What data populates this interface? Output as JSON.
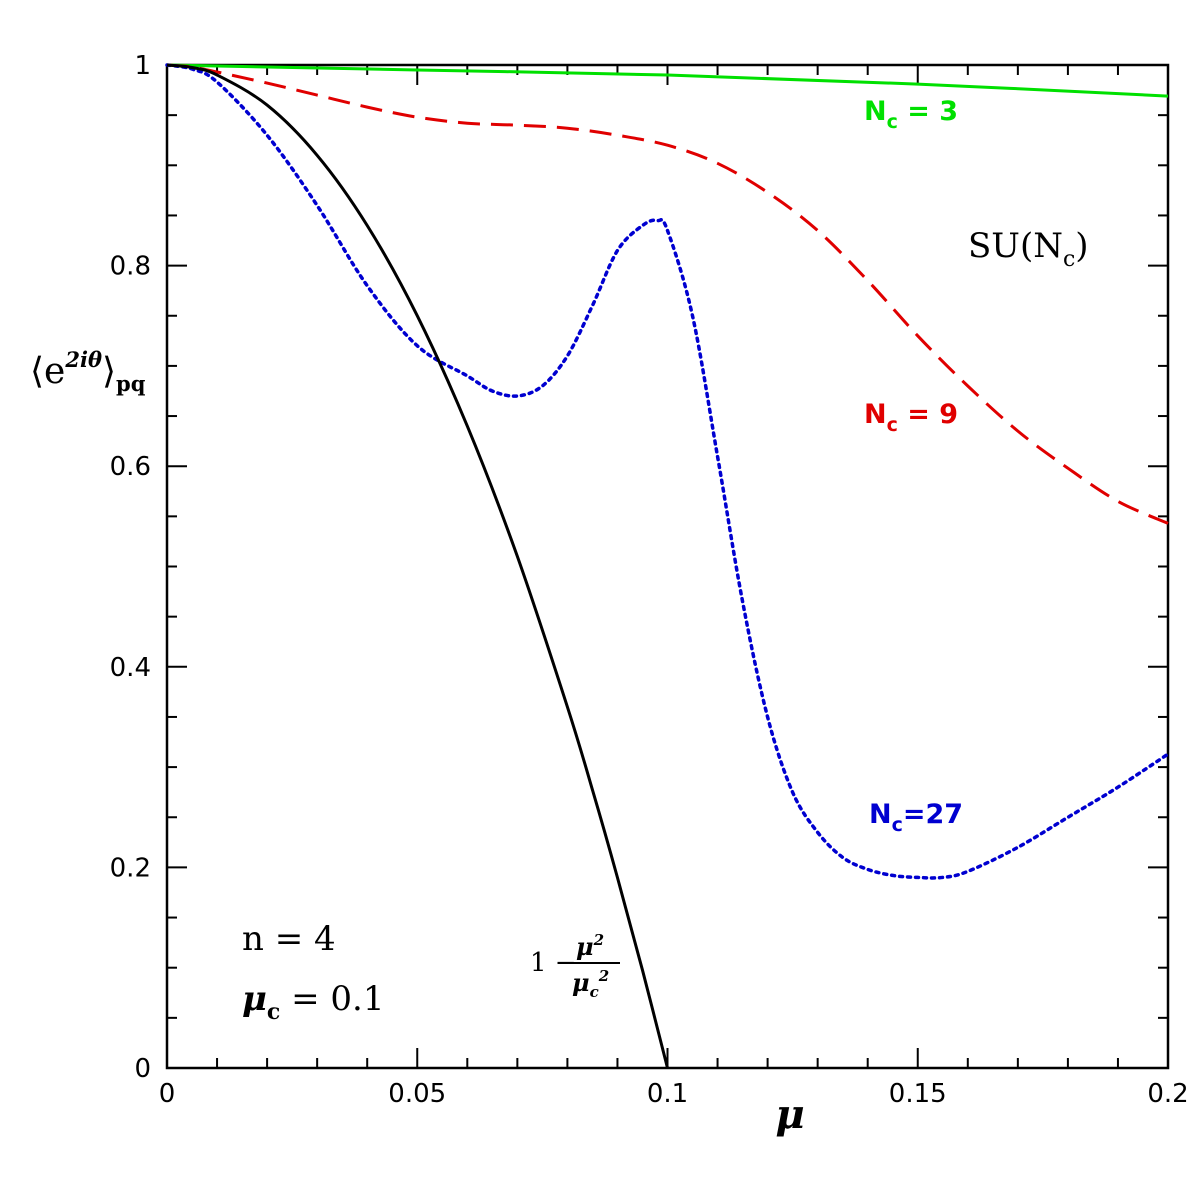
{
  "chart_data": {
    "type": "line",
    "title": "",
    "xlabel": "μ",
    "ylabel": {
      "base": "⟨e",
      "sup": "2iθ",
      "close": "⟩",
      "sub": "pq"
    },
    "xlim": [
      0,
      0.2
    ],
    "ylim": [
      0,
      1
    ],
    "x_ticks": [
      0,
      0.05,
      0.1,
      0.15,
      0.2
    ],
    "x_tick_labels": [
      "0",
      "0.05",
      "0.1",
      "0.15",
      "0.2"
    ],
    "y_ticks": [
      0,
      0.2,
      0.4,
      0.6,
      0.8,
      1
    ],
    "y_tick_labels": [
      "0",
      "0.2",
      "0.4",
      "0.6",
      "0.8",
      "1"
    ],
    "grid": false,
    "series": [
      {
        "name": "N_c = 3",
        "label": {
          "main": "N",
          "sub": "c",
          "rest": " = 3"
        },
        "color": "#00e000",
        "style": "solid",
        "x": [
          0,
          0.05,
          0.1,
          0.15,
          0.2
        ],
        "y": [
          1.0,
          0.995,
          0.99,
          0.981,
          0.969
        ]
      },
      {
        "name": "N_c = 9",
        "label": {
          "main": "N",
          "sub": "c",
          "rest": " = 9"
        },
        "color": "#e00000",
        "style": "dashed",
        "x": [
          0,
          0.005,
          0.01,
          0.02,
          0.03,
          0.04,
          0.05,
          0.06,
          0.07,
          0.08,
          0.09,
          0.1,
          0.11,
          0.12,
          0.13,
          0.14,
          0.15,
          0.16,
          0.17,
          0.18,
          0.19,
          0.2
        ],
        "y": [
          1.0,
          0.998,
          0.993,
          0.982,
          0.97,
          0.958,
          0.948,
          0.942,
          0.94,
          0.937,
          0.93,
          0.92,
          0.902,
          0.873,
          0.835,
          0.785,
          0.73,
          0.68,
          0.635,
          0.598,
          0.565,
          0.543
        ]
      },
      {
        "name": "N_c=27",
        "label": {
          "main": "N",
          "sub": "c",
          "rest": "=27"
        },
        "color": "#0000d0",
        "style": "dotted",
        "x": [
          0,
          0.005,
          0.01,
          0.02,
          0.03,
          0.04,
          0.05,
          0.06,
          0.065,
          0.07,
          0.075,
          0.08,
          0.085,
          0.09,
          0.095,
          0.098,
          0.1,
          0.105,
          0.11,
          0.115,
          0.12,
          0.125,
          0.13,
          0.135,
          0.14,
          0.145,
          0.15,
          0.155,
          0.16,
          0.17,
          0.18,
          0.19,
          0.2
        ],
        "y": [
          1.0,
          0.996,
          0.983,
          0.93,
          0.86,
          0.78,
          0.72,
          0.69,
          0.675,
          0.67,
          0.68,
          0.71,
          0.76,
          0.815,
          0.84,
          0.845,
          0.835,
          0.75,
          0.61,
          0.465,
          0.35,
          0.275,
          0.235,
          0.21,
          0.198,
          0.192,
          0.19,
          0.19,
          0.196,
          0.22,
          0.25,
          0.28,
          0.313
        ]
      },
      {
        "name": "1 − μ²/μ_c²",
        "label": {
          "one": "1 −",
          "num": "μ",
          "num_sup": "2",
          "den": "μ",
          "den_sub": "c",
          "den_sup": "2"
        },
        "color": "#000000",
        "style": "solid",
        "x": [
          0,
          0.005,
          0.01,
          0.02,
          0.03,
          0.04,
          0.05,
          0.06,
          0.07,
          0.08,
          0.085,
          0.09,
          0.095,
          0.1
        ],
        "y": [
          1.0,
          0.9975,
          0.99,
          0.96,
          0.91,
          0.84,
          0.75,
          0.64,
          0.51,
          0.36,
          0.2775,
          0.19,
          0.0975,
          0.0
        ]
      }
    ],
    "annotations": {
      "group": {
        "main": "SU(N",
        "sub": "c",
        "close": ")"
      },
      "n": {
        "var": "n",
        "rest": " = 4"
      },
      "mu_c": {
        "var": "μ",
        "sub": "c",
        "rest": " = 0.1"
      }
    }
  }
}
